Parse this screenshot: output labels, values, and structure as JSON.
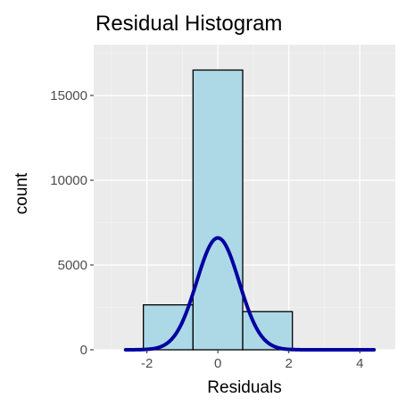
{
  "chart_data": {
    "type": "bar",
    "title": "Residual Histogram",
    "xlabel": "Residuals",
    "ylabel": "count",
    "xlim": [
      -3.5,
      5.0
    ],
    "ylim": [
      0,
      18000
    ],
    "grid": true,
    "legend": "none",
    "x_ticks": [
      -2,
      0,
      2,
      4
    ],
    "x_tick_labels": [
      "-2",
      "0",
      "2",
      "4"
    ],
    "y_ticks": [
      0,
      5000,
      10000,
      15000
    ],
    "y_tick_labels": [
      "0",
      "5000",
      "10000",
      "15000"
    ],
    "bins": [
      {
        "x0": -3.5,
        "x1": -2.1,
        "count": 0
      },
      {
        "x0": -2.1,
        "x1": -0.7,
        "count": 2650
      },
      {
        "x0": -0.7,
        "x1": 0.7,
        "count": 16500
      },
      {
        "x0": 0.7,
        "x1": 2.1,
        "count": 2250
      },
      {
        "x0": 2.1,
        "x1": 3.5,
        "count": 0
      },
      {
        "x0": 3.5,
        "x1": 4.9,
        "count": 0
      }
    ],
    "density_curve": {
      "type": "normal",
      "mean": 0,
      "sd": 0.6,
      "peak_count": 6600,
      "x_range": [
        -2.6,
        4.4
      ],
      "color": "#0000a0"
    },
    "colors": {
      "bar_fill": "#add8e6",
      "bar_outline": "#000000",
      "panel_background": "#ebebeb"
    }
  }
}
